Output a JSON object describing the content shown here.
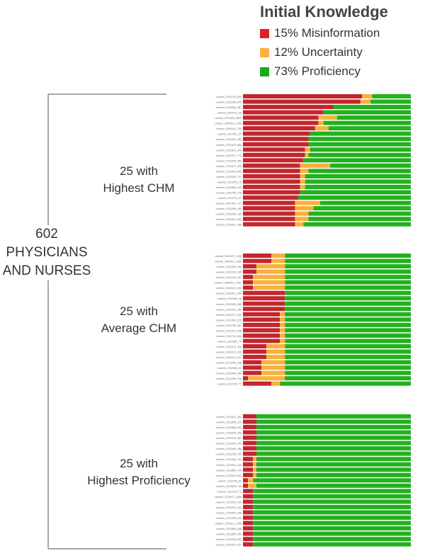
{
  "legend": {
    "title": "Initial Knowledge",
    "items": [
      {
        "label": "15% Misinformation",
        "color": "#d8232a"
      },
      {
        "label": "12% Uncertainty",
        "color": "#fbb03b"
      },
      {
        "label": "73% Proficiency",
        "color": "#1aab1a"
      }
    ]
  },
  "total_label": [
    "602",
    "PHYSICIANS",
    "AND NURSES"
  ],
  "colors": {
    "misinformation": "#c1272d",
    "uncertainty": "#fbb03b",
    "proficiency": "#22b11f",
    "bracket": "#8a8a8a"
  },
  "chart_data": {
    "type": "bar",
    "stacked": true,
    "orientation": "horizontal",
    "xlim": [
      0,
      100
    ],
    "groups": [
      {
        "label": [
          "25 with",
          "Highest CHM"
        ],
        "rows": [
          {
            "learner": "Learner_2312729_640",
            "mis": 71,
            "unc": 6
          },
          {
            "learner": "Learner_2312958_943",
            "mis": 70,
            "unc": 6
          },
          {
            "learner": "Learner_2312806_387",
            "mis": 54,
            "unc": 0
          },
          {
            "learner": "Learner_3004413_04",
            "mis": 48,
            "unc": 0
          },
          {
            "learner": "Learner_2311595_5805",
            "mis": 45,
            "unc": 11
          },
          {
            "learner": "Learner_3004412_1349",
            "mis": 45,
            "unc": 3
          },
          {
            "learner": "Learner_3004161_753",
            "mis": 43,
            "unc": 8
          },
          {
            "learner": "Learner_2311591_24",
            "mis": 40,
            "unc": 0
          },
          {
            "learner": "Learner_2312404_493",
            "mis": 39,
            "unc": 0
          },
          {
            "learner": "Learner_2311679_843",
            "mis": 39,
            "unc": 0
          },
          {
            "learner": "Learner_2312391_208",
            "mis": 37,
            "unc": 3
          },
          {
            "learner": "Learner_2311972_775",
            "mis": 37,
            "unc": 2
          },
          {
            "learner": "Learner_2312324_963",
            "mis": 36,
            "unc": 0
          },
          {
            "learner": "Learner_2311971_328",
            "mis": 34,
            "unc": 18
          },
          {
            "learner": "Learner_2311403_600",
            "mis": 34,
            "unc": 5
          },
          {
            "learner": "Learner_2312649_737",
            "mis": 34,
            "unc": 3
          },
          {
            "learner": "Learner_2312534_76",
            "mis": 34,
            "unc": 3
          },
          {
            "learner": "Learner_2312566_329",
            "mis": 34,
            "unc": 3
          },
          {
            "learner": "Learner_2312765_779",
            "mis": 34,
            "unc": 0
          },
          {
            "learner": "Learner_2312729_24",
            "mis": 33,
            "unc": 0
          },
          {
            "learner": "Learner_3047462_147",
            "mis": 31,
            "unc": 15
          },
          {
            "learner": "Learner_2312006_282",
            "mis": 31,
            "unc": 11
          },
          {
            "learner": "Learner_2312649_736",
            "mis": 31,
            "unc": 8
          },
          {
            "learner": "Learner_3004412_853",
            "mis": 31,
            "unc": 8
          },
          {
            "learner": "Learner_2312811_188",
            "mis": 31,
            "unc": 5
          }
        ]
      },
      {
        "label": [
          "25 with",
          "Average CHM"
        ],
        "rows": [
          {
            "learner": "Learner_3004307_1106",
            "mis": 17,
            "unc": 8
          },
          {
            "learner": "Learner_3004412_1466",
            "mis": 17,
            "unc": 8
          },
          {
            "learner": "Learner_2311595_943",
            "mis": 8,
            "unc": 17
          },
          {
            "learner": "Learner_2312012_925",
            "mis": 8,
            "unc": 17
          },
          {
            "learner": "Learner_2312154_407",
            "mis": 6,
            "unc": 19
          },
          {
            "learner": "Learner_3004412_1607",
            "mis": 6,
            "unc": 19
          },
          {
            "learner": "Learner_3004412_526",
            "mis": 6,
            "unc": 19
          },
          {
            "learner": "Learner_2312071_300",
            "mis": 25,
            "unc": 0
          },
          {
            "learner": "Learner_2311595_28",
            "mis": 25,
            "unc": 0
          },
          {
            "learner": "Learner_2312595_898",
            "mis": 25,
            "unc": 0
          },
          {
            "learner": "Learner_2312620_305",
            "mis": 25,
            "unc": 0
          },
          {
            "learner": "Learner_2312071_302",
            "mis": 22,
            "unc": 3
          },
          {
            "learner": "Learner_2311402_675",
            "mis": 22,
            "unc": 3
          },
          {
            "learner": "Learner_2312756_463",
            "mis": 22,
            "unc": 3
          },
          {
            "learner": "Learner_2311972_948",
            "mis": 22,
            "unc": 3
          },
          {
            "learner": "Learner_2312729_640",
            "mis": 22,
            "unc": 3
          },
          {
            "learner": "Learner_2312806_70",
            "mis": 22,
            "unc": 3
          },
          {
            "learner": "Learner_2311972_300",
            "mis": 14,
            "unc": 11
          },
          {
            "learner": "Learner_2312012_343",
            "mis": 14,
            "unc": 11
          },
          {
            "learner": "Learner_3004412_312",
            "mis": 14,
            "unc": 11
          },
          {
            "learner": "Learner_2312004_828",
            "mis": 11,
            "unc": 14
          },
          {
            "learner": "Learner_2312006_63",
            "mis": 11,
            "unc": 14
          },
          {
            "learner": "Learner_2312566_385",
            "mis": 11,
            "unc": 14
          },
          {
            "learner": "Learner_2312765_709",
            "mis": 3,
            "unc": 22
          },
          {
            "learner": "Learner_2312216_77",
            "mis": 17,
            "unc": 5
          }
        ]
      },
      {
        "label": [
          "25 with",
          "Highest Proficiency"
        ],
        "rows": [
          {
            "learner": "Learner_2311811_451",
            "mis": 8,
            "unc": 0
          },
          {
            "learner": "Learner_2311865_320",
            "mis": 8,
            "unc": 0
          },
          {
            "learner": "Learner_2312958_633",
            "mis": 8,
            "unc": 0
          },
          {
            "learner": "Learner_2312958_903",
            "mis": 8,
            "unc": 0
          },
          {
            "learner": "Learner_2312915_364",
            "mis": 8,
            "unc": 0
          },
          {
            "learner": "Learner_2312939_204",
            "mis": 8,
            "unc": 0
          },
          {
            "learner": "Learner_2312044_456",
            "mis": 8,
            "unc": 0
          },
          {
            "learner": "Learner_2312765_706",
            "mis": 8,
            "unc": 0
          },
          {
            "learner": "Learner_2311402_794",
            "mis": 6,
            "unc": 2
          },
          {
            "learner": "Learner_2311811_144",
            "mis": 6,
            "unc": 2
          },
          {
            "learner": "Learner_2311865_720",
            "mis": 6,
            "unc": 2
          },
          {
            "learner": "Learner_2312679_643",
            "mis": 6,
            "unc": 2
          },
          {
            "learner": "Learner_2311978_52",
            "mis": 3,
            "unc": 3
          },
          {
            "learner": "Learner_2312649_745",
            "mis": 3,
            "unc": 5
          },
          {
            "learner": "Learner_2312216_73",
            "mis": 6,
            "unc": 0
          },
          {
            "learner": "Learner_2312071_2005",
            "mis": 6,
            "unc": 0
          },
          {
            "learner": "Learner_2312024_793",
            "mis": 6,
            "unc": 0
          },
          {
            "learner": "Learner_2311978_443",
            "mis": 6,
            "unc": 0
          },
          {
            "learner": "Learner_2312540_946",
            "mis": 6,
            "unc": 0
          },
          {
            "learner": "Learner_2311595_643",
            "mis": 6,
            "unc": 0
          },
          {
            "learner": "Learner_2311811_1209",
            "mis": 6,
            "unc": 0
          },
          {
            "learner": "Learner_2311865_188",
            "mis": 6,
            "unc": 0
          },
          {
            "learner": "Learner_2311865_259",
            "mis": 6,
            "unc": 0
          },
          {
            "learner": "Learner_2312958_833",
            "mis": 6,
            "unc": 0
          },
          {
            "learner": "Learner_2312024_227",
            "mis": 6,
            "unc": 0
          }
        ]
      }
    ]
  }
}
